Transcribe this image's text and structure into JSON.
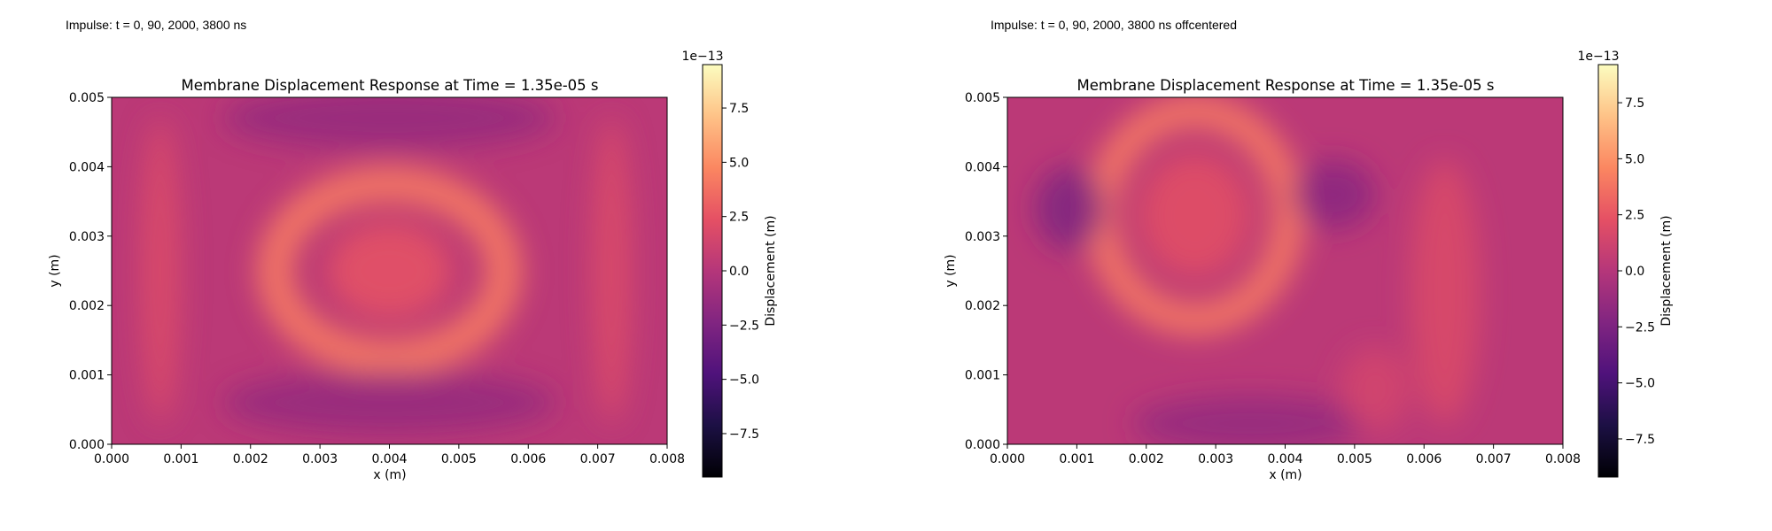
{
  "captions": [
    "Impulse: t = 0, 90, 2000, 3800 ns",
    "Impulse: t = 0, 90, 2000, 3800 ns offcentered"
  ],
  "colormap": {
    "name": "magma",
    "stops": [
      "#000004",
      "#1c1044",
      "#4f127b",
      "#812581",
      "#b5367a",
      "#e55064",
      "#fb8761",
      "#fec287",
      "#fcfdbf"
    ]
  },
  "chart_data": [
    {
      "type": "heatmap",
      "title": "Membrane Displacement Response at Time = 1.35e-05 s",
      "xlabel": "x (m)",
      "ylabel": "y (m)",
      "xlim": [
        0.0,
        0.008
      ],
      "ylim": [
        0.0,
        0.005
      ],
      "xticks": [
        "0.000",
        "0.001",
        "0.002",
        "0.003",
        "0.004",
        "0.005",
        "0.006",
        "0.007",
        "0.008"
      ],
      "yticks": [
        "0.000",
        "0.001",
        "0.002",
        "0.003",
        "0.004",
        "0.005"
      ],
      "colorbar": {
        "label": "Displacement (m)",
        "exponent": "1e−13",
        "range": [
          -9.5,
          9.5
        ],
        "ticks": [
          "−7.5",
          "−5.0",
          "−2.5",
          "0.0",
          "2.5",
          "5.0",
          "7.5"
        ],
        "tick_values": [
          -7.5,
          -5.0,
          -2.5,
          0.0,
          2.5,
          5.0,
          7.5
        ]
      },
      "features": [
        {
          "shape": "ring",
          "cx": 0.004,
          "cy": 0.0025,
          "rx": 0.00165,
          "ry": 0.00125,
          "width": 0.0005,
          "value": 4.2
        },
        {
          "shape": "blob",
          "cx": 0.004,
          "cy": 0.0025,
          "rx": 0.0009,
          "ry": 0.0007,
          "value": 2.5
        },
        {
          "shape": "blob",
          "cx": 0.0007,
          "cy": 0.0025,
          "rx": 0.00028,
          "ry": 0.0022,
          "value": 2.0
        },
        {
          "shape": "blob",
          "cx": 0.0072,
          "cy": 0.0025,
          "rx": 0.00028,
          "ry": 0.0022,
          "value": 2.0
        },
        {
          "shape": "blob",
          "cx": 0.004,
          "cy": 0.0047,
          "rx": 0.0024,
          "ry": 0.00045,
          "value": -1.5
        },
        {
          "shape": "blob",
          "cx": 0.004,
          "cy": 0.0006,
          "rx": 0.0024,
          "ry": 0.00045,
          "value": -1.5
        }
      ]
    },
    {
      "type": "heatmap",
      "title": "Membrane Displacement Response at Time = 1.35e-05 s",
      "xlabel": "x (m)",
      "ylabel": "y (m)",
      "xlim": [
        0.0,
        0.008
      ],
      "ylim": [
        0.0,
        0.005
      ],
      "xticks": [
        "0.000",
        "0.001",
        "0.002",
        "0.003",
        "0.004",
        "0.005",
        "0.006",
        "0.007",
        "0.008"
      ],
      "yticks": [
        "0.000",
        "0.001",
        "0.002",
        "0.003",
        "0.004",
        "0.005"
      ],
      "colorbar": {
        "label": "Displacement (m)",
        "exponent": "1e−13",
        "range": [
          -9.2,
          9.2
        ],
        "ticks": [
          "−7.5",
          "−5.0",
          "−2.5",
          "0.0",
          "2.5",
          "5.0",
          "7.5"
        ],
        "tick_values": [
          -7.5,
          -5.0,
          -2.5,
          0.0,
          2.5,
          5.0,
          7.5
        ]
      },
      "features": [
        {
          "shape": "ring",
          "cx": 0.0027,
          "cy": 0.0033,
          "rx": 0.00135,
          "ry": 0.0015,
          "width": 0.00045,
          "value": 4.0
        },
        {
          "shape": "blob",
          "cx": 0.0027,
          "cy": 0.0033,
          "rx": 0.0008,
          "ry": 0.0009,
          "value": 2.2
        },
        {
          "shape": "blob",
          "cx": 0.0009,
          "cy": 0.0034,
          "rx": 0.0005,
          "ry": 0.0006,
          "value": -2.5
        },
        {
          "shape": "blob",
          "cx": 0.0047,
          "cy": 0.0036,
          "rx": 0.0006,
          "ry": 0.0005,
          "value": -2.0
        },
        {
          "shape": "blob",
          "cx": 0.0035,
          "cy": 0.0003,
          "rx": 0.0017,
          "ry": 0.0004,
          "value": -1.5
        },
        {
          "shape": "blob",
          "cx": 0.0063,
          "cy": 0.0022,
          "rx": 0.0005,
          "ry": 0.0019,
          "value": 1.8
        },
        {
          "shape": "blob",
          "cx": 0.0053,
          "cy": 0.0008,
          "rx": 0.0005,
          "ry": 0.0006,
          "value": 1.5
        }
      ]
    }
  ]
}
